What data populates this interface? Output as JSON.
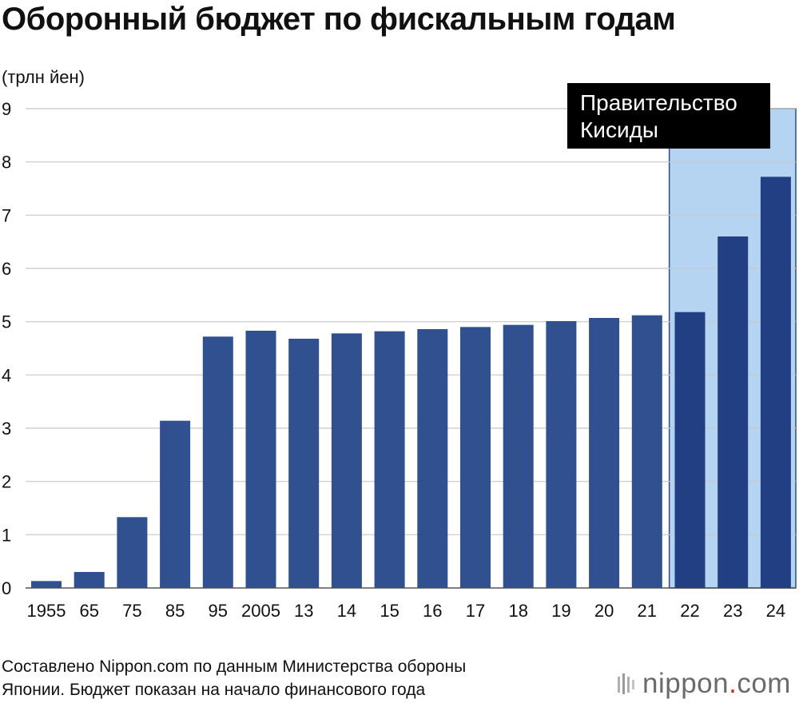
{
  "title": "Оборонный бюджет по фискальным годам",
  "source_line1": "Составлено Nippon.com по данным Министерства обороны",
  "source_line2": "Японии. Бюджет показан на начало финансового года",
  "logo": {
    "text": "nippon",
    "dot": ".",
    "suffix": "com",
    "icon": "nippon-logo-mark-icon"
  },
  "colors": {
    "bar": "#30508f",
    "bar_highlight": "#233f84",
    "highlight_band": "#b4d4f2",
    "highlight_border": "#2d4c8c",
    "annotation_bg": "#000000",
    "grid": "#c8c8c8"
  },
  "chart_data": {
    "type": "bar",
    "title": "Оборонный бюджет по фискальным годам",
    "ylabel": "(трлн йен)",
    "xlabel": "",
    "ylim": [
      0,
      9
    ],
    "yticks": [
      "0",
      "1",
      "2",
      "3",
      "4",
      "5",
      "6",
      "7",
      "8",
      "9"
    ],
    "grid": true,
    "categories": [
      "1955",
      "65",
      "75",
      "85",
      "95",
      "2005",
      "13",
      "14",
      "15",
      "16",
      "17",
      "18",
      "19",
      "20",
      "21",
      "22",
      "23",
      "24"
    ],
    "values": [
      0.13,
      0.3,
      1.33,
      3.14,
      4.72,
      4.83,
      4.68,
      4.78,
      4.82,
      4.86,
      4.9,
      4.94,
      5.01,
      5.07,
      5.12,
      5.18,
      6.6,
      7.72
    ],
    "highlight": {
      "label_line1": "Правительство",
      "label_line2": "Кисиды",
      "categories": [
        "22",
        "23",
        "24"
      ]
    }
  }
}
